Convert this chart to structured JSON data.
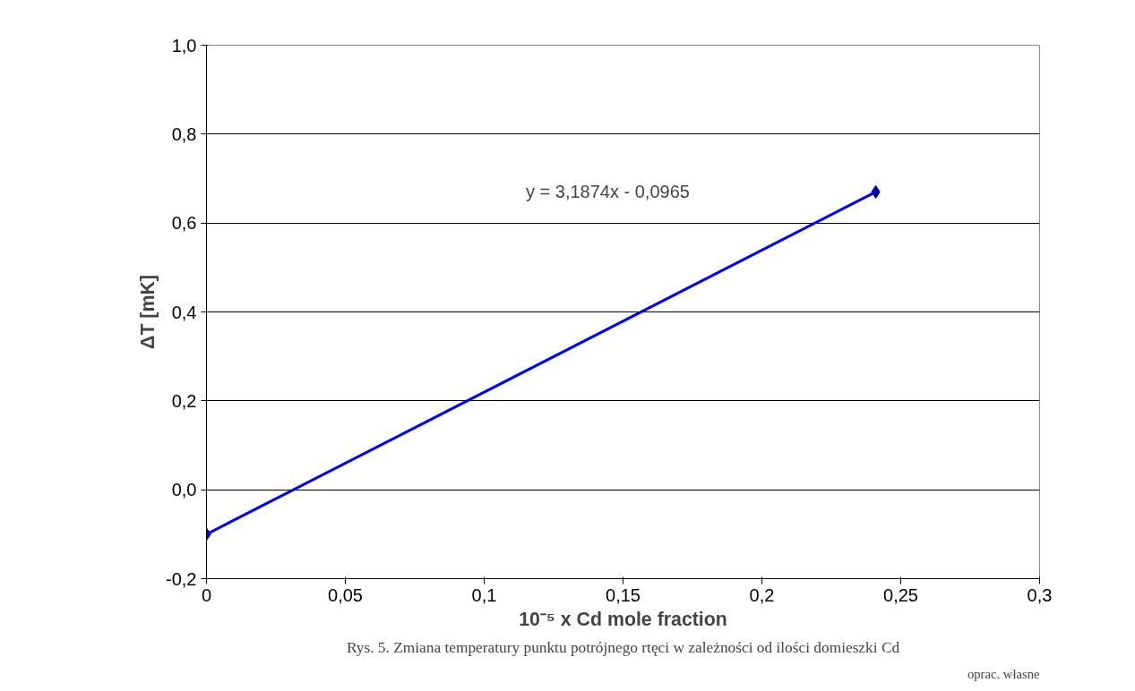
{
  "chart_data": {
    "type": "scatter",
    "xlabel": "10⁻⁵ x Cd mole fraction",
    "ylabel": "ΔT [mK]",
    "x": [
      0,
      0.241
    ],
    "series": [
      {
        "color": "#00008b",
        "marker": "diamond",
        "values": [
          -0.1,
          0.67
        ]
      },
      {
        "type": "line",
        "color": "#0000ff",
        "marker": "none",
        "x": [
          0,
          0.241
        ],
        "values": [
          -0.1,
          0.67
        ]
      }
    ],
    "xlim": [
      0,
      0.3
    ],
    "xticks": [
      {
        "value": 0,
        "label": "0"
      },
      {
        "value": 0.05,
        "label": "0,05"
      },
      {
        "value": 0.1,
        "label": "0,1"
      },
      {
        "value": 0.15,
        "label": "0,15"
      },
      {
        "value": 0.2,
        "label": "0,2"
      },
      {
        "value": 0.25,
        "label": "0,25"
      },
      {
        "value": 0.3,
        "label": "0,3"
      }
    ],
    "ylim": [
      -0.2,
      1
    ],
    "yticks": [
      {
        "value": -0.2,
        "label": "-0,2"
      },
      {
        "value": 0,
        "label": "0,0"
      },
      {
        "value": 0.2,
        "label": "0,2"
      },
      {
        "value": 0.4,
        "label": "0,4"
      },
      {
        "value": 0.6,
        "label": "0,6"
      },
      {
        "value": 0.8,
        "label": "0,8"
      },
      {
        "value": 1,
        "label": "1,0"
      }
    ],
    "grid": "y",
    "annotations": [
      "y = 3,1874x - 0,0965",
      "Rys. 5. Zmiana temperatury punktu potrójnego rtęci w zależności od ilości domieszki Cd",
      "oprac. własne"
    ]
  }
}
